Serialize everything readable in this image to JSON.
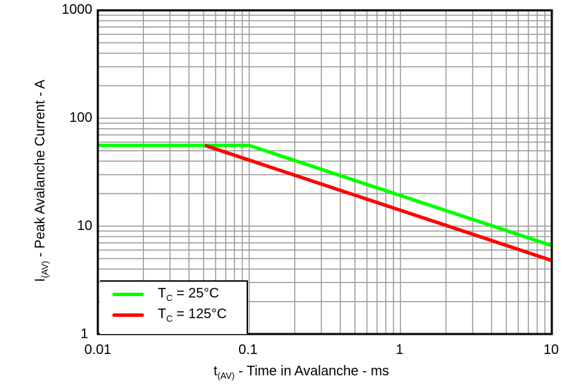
{
  "chart_data": {
    "type": "line",
    "title": "",
    "xlabel": "t(AV) - Time in Avalanche - ms",
    "ylabel": "I(AV) - Peak Avalanche Current - A",
    "xscale": "log",
    "yscale": "log",
    "xlim": [
      0.01,
      10
    ],
    "ylim": [
      1,
      1000
    ],
    "grid": true,
    "legend_position": "lower left",
    "x_ticks": [
      "0.01",
      "0.1",
      "1",
      "10"
    ],
    "y_ticks": [
      "1",
      "10",
      "100",
      "1000"
    ],
    "series": [
      {
        "name": "TC = 25°C",
        "color": "#00ff00",
        "x": [
          0.01,
          0.1,
          10
        ],
        "y": [
          56,
          56,
          6.6
        ]
      },
      {
        "name": "TC = 125°C",
        "color": "#ff0000",
        "x": [
          0.051,
          10
        ],
        "y": [
          56,
          4.8
        ]
      }
    ]
  },
  "axes": {
    "x_ticks": [
      "0.01",
      "0.1",
      "1",
      "10"
    ],
    "y_ticks": [
      "1000",
      "100",
      "10",
      "1"
    ],
    "xlabel_main": "t",
    "xlabel_sub": "(AV)",
    "xlabel_rest": " - Time in Avalanche - ms",
    "ylabel_main": "I",
    "ylabel_sub": "(AV)",
    "ylabel_rest": " - Peak Avalanche Current - A"
  },
  "legend": [
    {
      "main": "T",
      "sub": "C",
      "rest": " = 25°C",
      "color": "#00ff00"
    },
    {
      "main": "T",
      "sub": "C",
      "rest": " = 125°C",
      "color": "#ff0000"
    }
  ]
}
